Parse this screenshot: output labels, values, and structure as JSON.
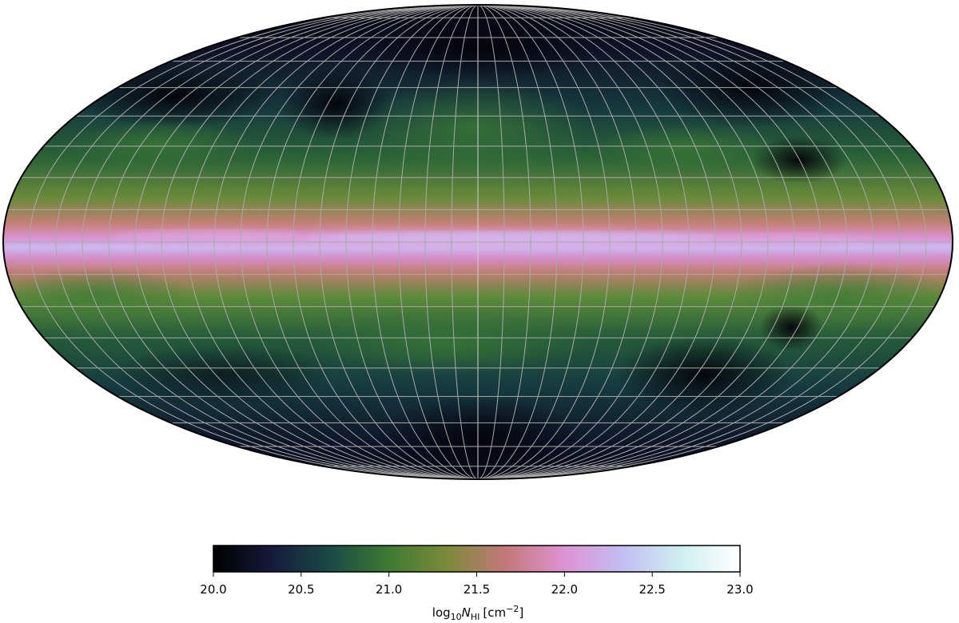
{
  "map": {
    "projection": "mollweide",
    "graticule": {
      "visible": true,
      "lon_step_deg": 10,
      "lat_step_deg": 10
    },
    "colormap": "cubehelix-like",
    "colormap_stops": [
      "#000000",
      "#161a3c",
      "#1a4a45",
      "#3f7a33",
      "#7d8a3a",
      "#c4787a",
      "#dd93d3",
      "#c3bdf3",
      "#cdf0ef",
      "#ffffff"
    ],
    "regions": [
      "galactic-plane",
      "north-cap",
      "south-cap"
    ]
  },
  "colorbar": {
    "min": 20.0,
    "max": 23.0,
    "ticks": [
      "20.0",
      "20.5",
      "21.0",
      "21.5",
      "22.0",
      "22.5",
      "23.0"
    ],
    "label_prefix": "log",
    "label_sub": "10",
    "label_symbol": "N",
    "label_symbol_sub": "HI",
    "label_unit": "[cm",
    "label_unit_sup": "−2",
    "label_unit_close": "]"
  }
}
